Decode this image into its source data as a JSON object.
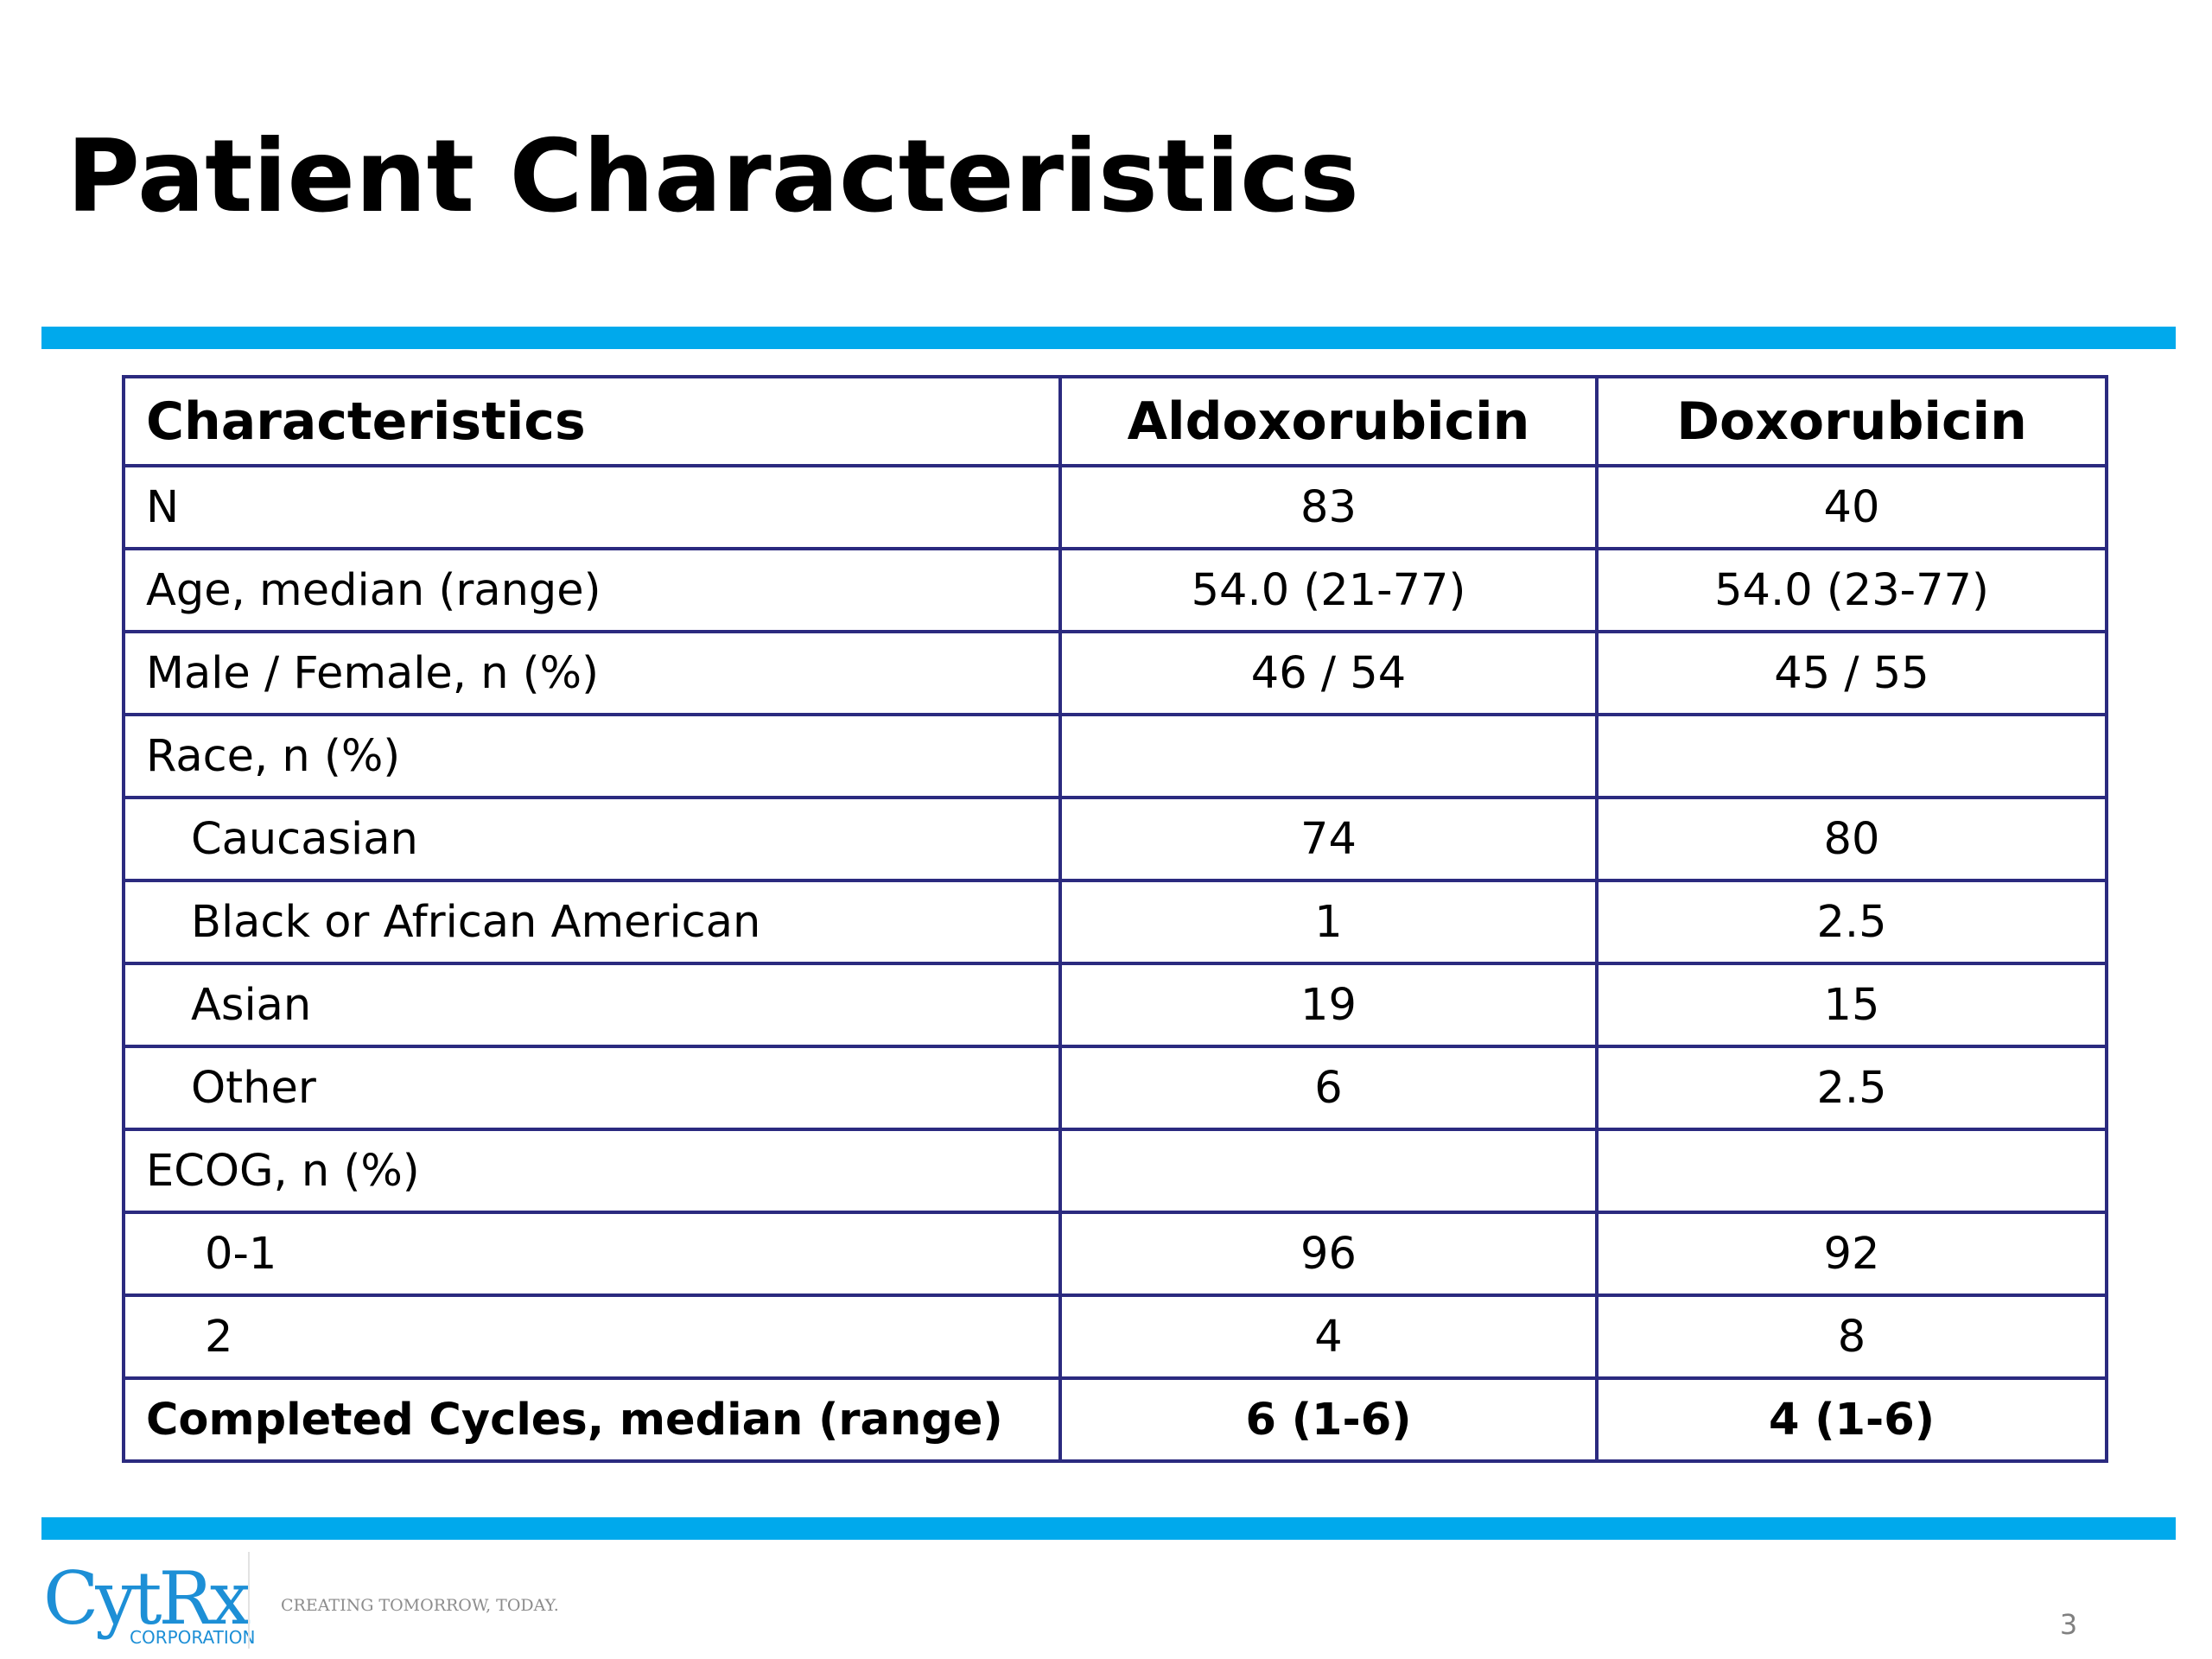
{
  "slide": {
    "title": "Patient Characteristics",
    "page_number": "3"
  },
  "brand": {
    "accent_color": "#00a9ec",
    "table_border_color": "#2b2a7f",
    "logo_color": "#1d8fd6",
    "logo_text": "CytRx",
    "logo_subtext": "CORPORATION",
    "tagline": "CREATING TOMORROW, TODAY."
  },
  "table": {
    "headers": [
      "Characteristics",
      "Aldoxorubicin",
      "Doxorubicin"
    ],
    "rows": [
      {
        "label": "N",
        "aldoxorubicin": "83",
        "doxorubicin": "40",
        "indent": 0
      },
      {
        "label": "Age, median (range)",
        "aldoxorubicin": "54.0 (21-77)",
        "doxorubicin": "54.0 (23-77)",
        "indent": 0
      },
      {
        "label": "Male / Female, n (%)",
        "aldoxorubicin": "46 / 54",
        "doxorubicin": "45 / 55",
        "indent": 0
      },
      {
        "label": "Race, n (%)",
        "aldoxorubicin": "",
        "doxorubicin": "",
        "indent": 0
      },
      {
        "label": "Caucasian",
        "aldoxorubicin": "74",
        "doxorubicin": "80",
        "indent": 1
      },
      {
        "label": "Black or African American",
        "aldoxorubicin": "1",
        "doxorubicin": "2.5",
        "indent": 1
      },
      {
        "label": "Asian",
        "aldoxorubicin": "19",
        "doxorubicin": "15",
        "indent": 1
      },
      {
        "label": "Other",
        "aldoxorubicin": "6",
        "doxorubicin": "2.5",
        "indent": 1
      },
      {
        "label": "ECOG, n (%)",
        "aldoxorubicin": "",
        "doxorubicin": "",
        "indent": 0
      },
      {
        "label": "0-1",
        "aldoxorubicin": "96",
        "doxorubicin": "92",
        "indent": 2
      },
      {
        "label": "2",
        "aldoxorubicin": "4",
        "doxorubicin": "8",
        "indent": 2
      },
      {
        "label": "Completed Cycles, median (range)",
        "aldoxorubicin": "6 (1-6)",
        "doxorubicin": "4 (1-6)",
        "indent": 0
      }
    ]
  }
}
